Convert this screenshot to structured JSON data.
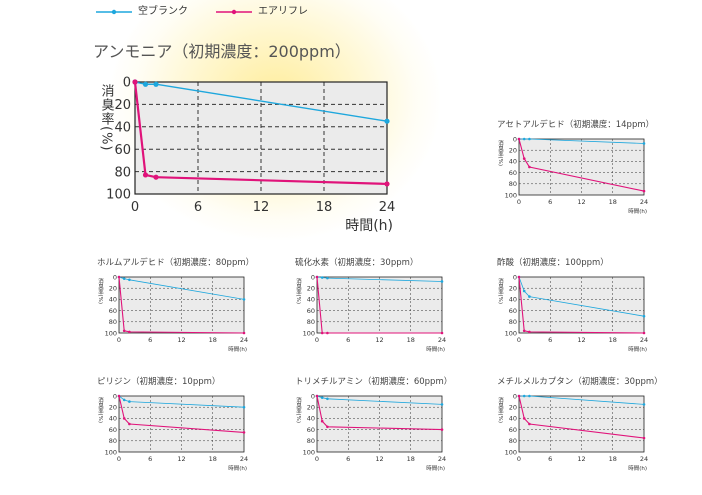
{
  "legend": {
    "items": [
      {
        "label": "空ブランク",
        "color": "#1ea7dd"
      },
      {
        "label": "エアリフレ",
        "color": "#e0137a"
      }
    ]
  },
  "chart_data": [
    {
      "type": "line",
      "title": "アンモニア（初期濃度：200ppm）",
      "xlabel": "時間(h)",
      "ylabel": "消臭率(%)",
      "xlim": [
        0,
        24
      ],
      "ylim": [
        0,
        100
      ],
      "y_inverted": true,
      "grid": true,
      "x_ticks": [
        "0",
        "6",
        "12",
        "18",
        "24"
      ],
      "y_ticks": [
        "0",
        "20",
        "40",
        "60",
        "80",
        "100"
      ],
      "series": [
        {
          "name": "空ブランク",
          "x": [
            0,
            1,
            2,
            24
          ],
          "y": [
            0,
            2,
            2,
            35
          ]
        },
        {
          "name": "エアリフレ",
          "x": [
            0,
            1,
            2,
            24
          ],
          "y": [
            0,
            83,
            85,
            91
          ]
        }
      ]
    },
    {
      "type": "line",
      "title": "アセトアルデヒド（初期濃度：14ppm）",
      "xlabel": "時間(h)",
      "ylabel": "消臭率(%)",
      "xlim": [
        0,
        24
      ],
      "ylim": [
        0,
        100
      ],
      "y_inverted": true,
      "grid": true,
      "x_ticks": [
        "0",
        "6",
        "12",
        "18",
        "24"
      ],
      "y_ticks": [
        "0",
        "20",
        "40",
        "60",
        "80",
        "100"
      ],
      "series": [
        {
          "name": "空ブランク",
          "x": [
            0,
            1,
            2,
            24
          ],
          "y": [
            0,
            0,
            0,
            8
          ]
        },
        {
          "name": "エアリフレ",
          "x": [
            0,
            1,
            2,
            24
          ],
          "y": [
            0,
            35,
            50,
            93
          ]
        }
      ]
    },
    {
      "type": "line",
      "title": "ホルムアルデヒド（初期濃度：80ppm）",
      "xlabel": "時間(h)",
      "ylabel": "消臭率(%)",
      "xlim": [
        0,
        24
      ],
      "ylim": [
        0,
        100
      ],
      "y_inverted": true,
      "grid": true,
      "x_ticks": [
        "0",
        "6",
        "12",
        "18",
        "24"
      ],
      "y_ticks": [
        "0",
        "20",
        "40",
        "60",
        "80",
        "100"
      ],
      "series": [
        {
          "name": "空ブランク",
          "x": [
            0,
            1,
            2,
            24
          ],
          "y": [
            0,
            3,
            5,
            40
          ]
        },
        {
          "name": "エアリフレ",
          "x": [
            0,
            1,
            2,
            24
          ],
          "y": [
            0,
            96,
            98,
            100
          ]
        }
      ]
    },
    {
      "type": "line",
      "title": "硫化水素（初期濃度：30ppm）",
      "xlabel": "時間(h)",
      "ylabel": "消臭率(%)",
      "xlim": [
        0,
        24
      ],
      "ylim": [
        0,
        100
      ],
      "y_inverted": true,
      "grid": true,
      "x_ticks": [
        "0",
        "6",
        "12",
        "18",
        "24"
      ],
      "y_ticks": [
        "0",
        "20",
        "40",
        "60",
        "80",
        "100"
      ],
      "series": [
        {
          "name": "空ブランク",
          "x": [
            0,
            1,
            2,
            24
          ],
          "y": [
            0,
            1,
            2,
            8
          ]
        },
        {
          "name": "エアリフレ",
          "x": [
            0,
            1,
            2,
            24
          ],
          "y": [
            0,
            100,
            100,
            100
          ]
        }
      ]
    },
    {
      "type": "line",
      "title": "酢酸（初期濃度：100ppm）",
      "xlabel": "時間(h)",
      "ylabel": "消臭率(%)",
      "xlim": [
        0,
        24
      ],
      "ylim": [
        0,
        100
      ],
      "y_inverted": true,
      "grid": true,
      "x_ticks": [
        "0",
        "6",
        "12",
        "18",
        "24"
      ],
      "y_ticks": [
        "0",
        "20",
        "40",
        "60",
        "80",
        "100"
      ],
      "series": [
        {
          "name": "空ブランク",
          "x": [
            0,
            1,
            2,
            24
          ],
          "y": [
            0,
            25,
            35,
            70
          ]
        },
        {
          "name": "エアリフレ",
          "x": [
            0,
            1,
            2,
            24
          ],
          "y": [
            0,
            96,
            98,
            100
          ]
        }
      ]
    },
    {
      "type": "line",
      "title": "ピリジン（初期濃度：10ppm）",
      "xlabel": "時間(h)",
      "ylabel": "消臭率(%)",
      "xlim": [
        0,
        24
      ],
      "ylim": [
        0,
        100
      ],
      "y_inverted": true,
      "grid": true,
      "x_ticks": [
        "0",
        "6",
        "12",
        "18",
        "24"
      ],
      "y_ticks": [
        "0",
        "20",
        "40",
        "60",
        "80",
        "100"
      ],
      "series": [
        {
          "name": "空ブランク",
          "x": [
            0,
            1,
            2,
            24
          ],
          "y": [
            0,
            7,
            10,
            20
          ]
        },
        {
          "name": "エアリフレ",
          "x": [
            0,
            1,
            2,
            24
          ],
          "y": [
            0,
            40,
            50,
            65
          ]
        }
      ]
    },
    {
      "type": "line",
      "title": "トリメチルアミン（初期濃度：60ppm）",
      "xlabel": "時間(h)",
      "ylabel": "消臭率(%)",
      "xlim": [
        0,
        24
      ],
      "ylim": [
        0,
        100
      ],
      "y_inverted": true,
      "grid": true,
      "x_ticks": [
        "0",
        "6",
        "12",
        "18",
        "24"
      ],
      "y_ticks": [
        "0",
        "20",
        "40",
        "60",
        "80",
        "100"
      ],
      "series": [
        {
          "name": "空ブランク",
          "x": [
            0,
            1,
            2,
            24
          ],
          "y": [
            0,
            3,
            5,
            15
          ]
        },
        {
          "name": "エアリフレ",
          "x": [
            0,
            1,
            2,
            24
          ],
          "y": [
            0,
            45,
            55,
            60
          ]
        }
      ]
    },
    {
      "type": "line",
      "title": "メチルメルカプタン（初期濃度：30ppm）",
      "xlabel": "時間(h)",
      "ylabel": "消臭率(%)",
      "xlim": [
        0,
        24
      ],
      "ylim": [
        0,
        100
      ],
      "y_inverted": true,
      "grid": true,
      "x_ticks": [
        "0",
        "6",
        "12",
        "18",
        "24"
      ],
      "y_ticks": [
        "0",
        "20",
        "40",
        "60",
        "80",
        "100"
      ],
      "series": [
        {
          "name": "空ブランク",
          "x": [
            0,
            1,
            2,
            24
          ],
          "y": [
            0,
            0,
            0,
            15
          ]
        },
        {
          "name": "エアリフレ",
          "x": [
            0,
            1,
            2,
            24
          ],
          "y": [
            0,
            40,
            50,
            75
          ]
        }
      ]
    }
  ]
}
